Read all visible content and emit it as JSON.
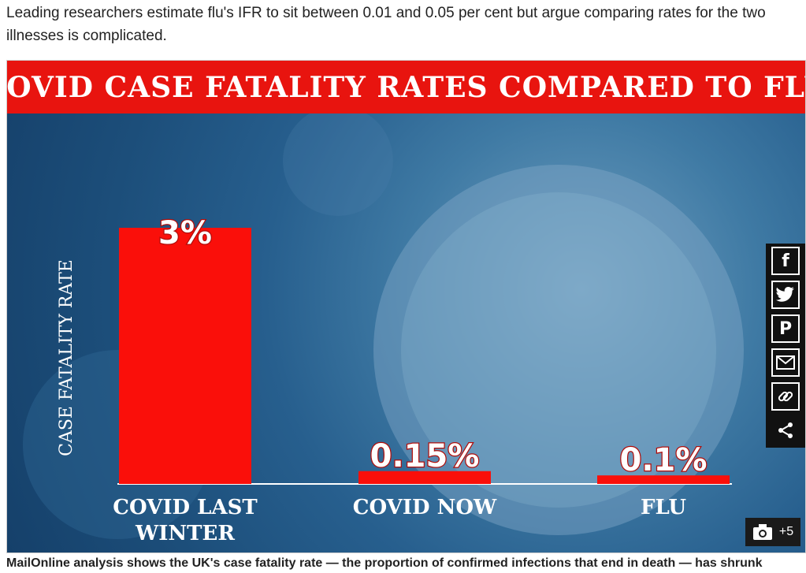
{
  "article": {
    "intro_line1": "Leading researchers estimate flu's IFR to sit between 0.01 and 0.05 per cent but argue comparing rates for the two",
    "intro_line2": "illnesses is complicated.",
    "caption": "MailOnline analysis shows the UK's case fatality rate — the proportion of confirmed infections that end in death — has shrunk"
  },
  "share_icons": [
    "facebook-icon",
    "twitter-icon",
    "pinterest-icon",
    "email-icon",
    "link-icon",
    "share-icon"
  ],
  "photo_count": "+5",
  "colors": {
    "bar": "#fa0f0a",
    "title_bg": "#e8140f",
    "bar_label_stroke": "#b00d0a"
  },
  "chart_data": {
    "type": "bar",
    "title": "COVID CASE FATALITY RATES COMPARED TO FLU",
    "ylabel": "CASE FATALITY RATE",
    "xlabel": "",
    "categories": [
      "COVID LAST WINTER",
      "COVID NOW",
      "FLU"
    ],
    "values": [
      3,
      0.15,
      0.1
    ],
    "value_labels": [
      "3%",
      "0.15%",
      "0.1%"
    ],
    "ylim": [
      0,
      3.5
    ],
    "grid": false
  }
}
